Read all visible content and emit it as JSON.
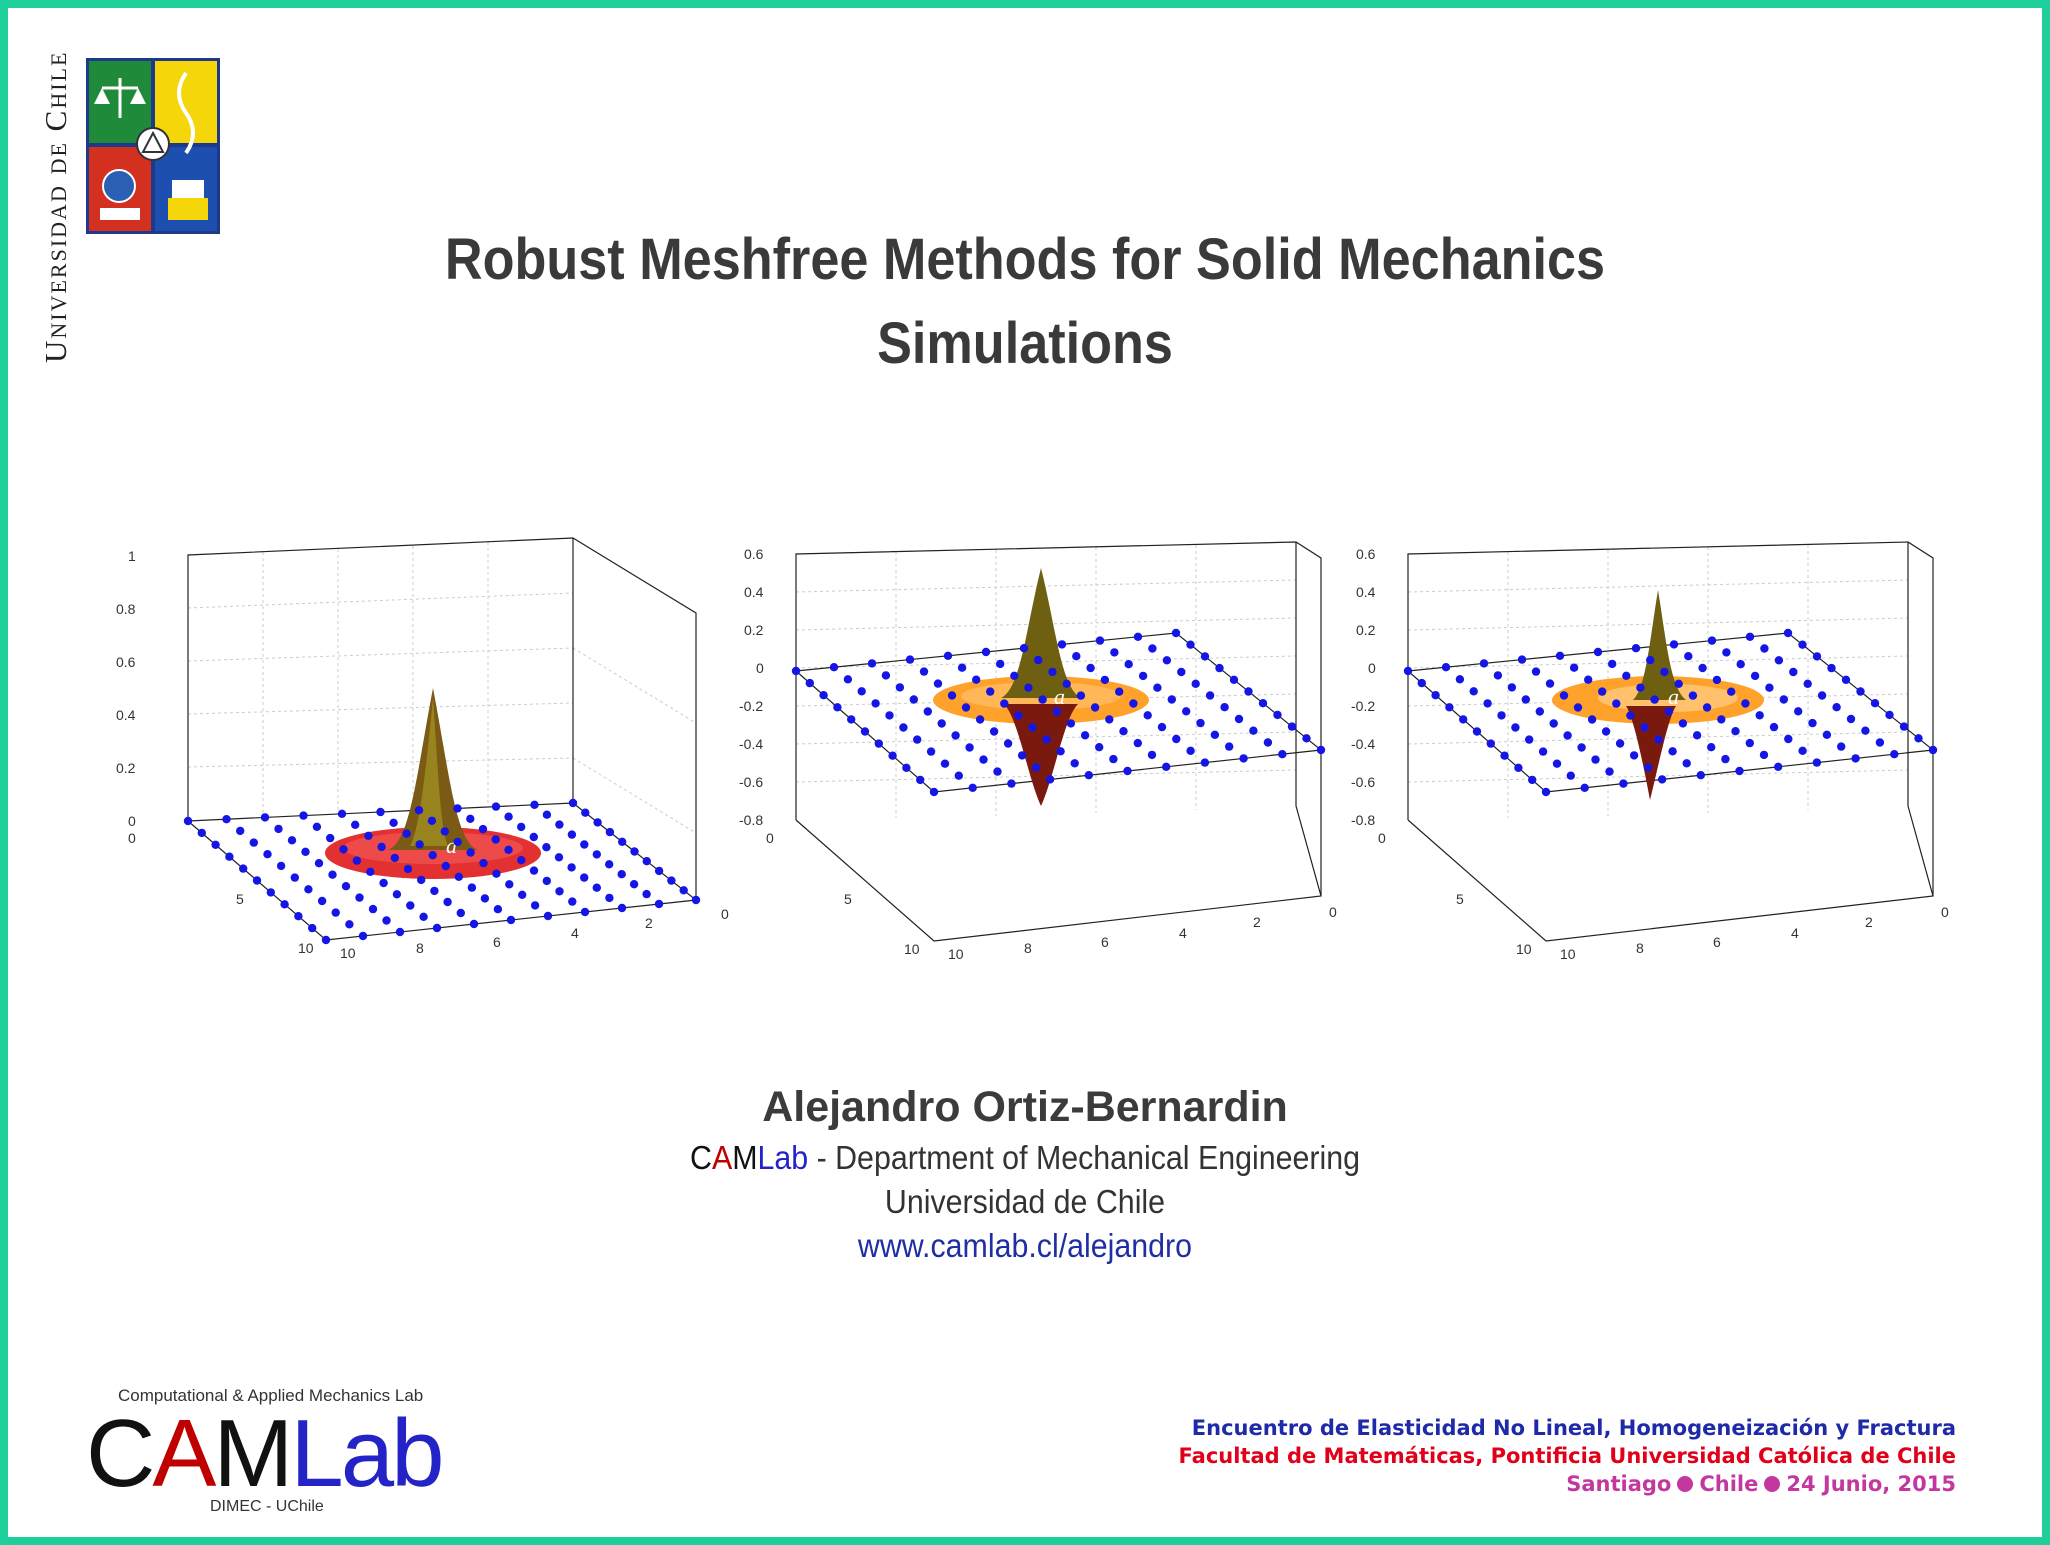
{
  "sidebar": {
    "university_vertical": "Universidad de Chile"
  },
  "crest": {
    "name": "Universidad de Chile coat of arms"
  },
  "title": {
    "line1": "Robust Meshfree Methods for Solid Mechanics",
    "line2": "Simulations"
  },
  "plots": [
    {
      "z_ticks": [
        "1",
        "0.8",
        "0.6",
        "0.4",
        "0.2",
        "0"
      ],
      "x_ticks": [
        "10",
        "8",
        "6",
        "4",
        "2",
        "0"
      ],
      "y_ticks": [
        "0",
        "5",
        "10"
      ],
      "label": "a"
    },
    {
      "z_ticks": [
        "0.6",
        "0.4",
        "0.2",
        "0",
        "-0.2",
        "-0.4",
        "-0.6",
        "-0.8"
      ],
      "x_ticks": [
        "10",
        "8",
        "6",
        "4",
        "2",
        "0"
      ],
      "y_ticks": [
        "0",
        "5",
        "10"
      ],
      "label": "a"
    },
    {
      "z_ticks": [
        "0.6",
        "0.4",
        "0.2",
        "0",
        "-0.2",
        "-0.4",
        "-0.6",
        "-0.8"
      ],
      "x_ticks": [
        "10",
        "8",
        "6",
        "4",
        "2",
        "0"
      ],
      "y_ticks": [
        "0",
        "5",
        "10"
      ],
      "label": "a"
    }
  ],
  "author": {
    "name": "Alejandro Ortiz-Bernardin",
    "lab_c": "C",
    "lab_a": "A",
    "lab_m": "M",
    "lab_lab": "Lab",
    "department": " -  Department of Mechanical Engineering",
    "university": "Universidad de Chile",
    "website": "www.camlab.cl/alejandro"
  },
  "logo": {
    "top_text": "Computational & Applied Mechanics Lab",
    "c": "C",
    "a": "A",
    "m": "M",
    "lab": "Lab",
    "bottom_text": "DIMEC - UChile"
  },
  "conference": {
    "line1": "Encuentro de Elasticidad No Lineal, Homogeneización y Fractura",
    "line2": "Facultad de Matemáticas, Pontificia Universidad Católica de Chile",
    "city": "Santiago",
    "country": "Chile",
    "date": "24 Junio, 2015"
  },
  "colors": {
    "border": "#1fcf9b",
    "node_blue": "#1515e6",
    "ring_red": "#e01a1a",
    "ring_orange": "#ff9a1a",
    "title_gray": "#3a3a3a",
    "conf_blue": "#1f2aa8",
    "conf_red": "#e0001a",
    "conf_magenta": "#c3389e"
  }
}
